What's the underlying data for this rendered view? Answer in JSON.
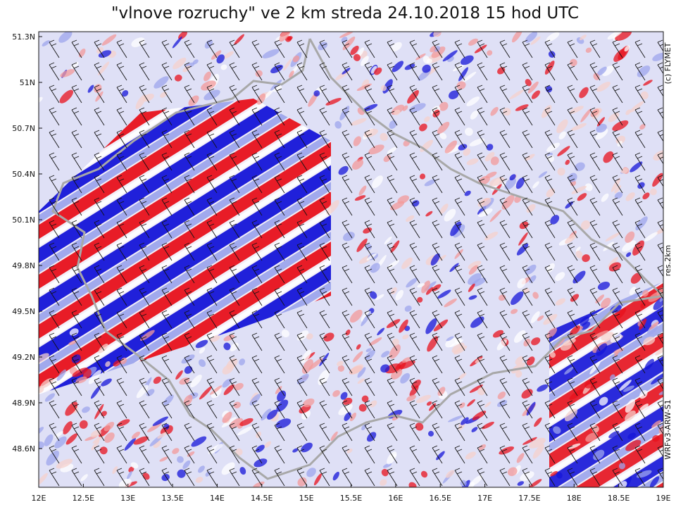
{
  "title": "\"vlnove rozruchy\" ve 2 km streda  24.10.2018 15 hod UTC",
  "lat_labels": [
    "51.3N",
    "51N",
    "50.7N",
    "50.4N",
    "50.1N",
    "49.8N",
    "49.5N",
    "49.2N",
    "48.9N",
    "48.6N"
  ],
  "lon_labels": [
    "12E",
    "12.5E",
    "13E",
    "13.5E",
    "14E",
    "14.5E",
    "15E",
    "15.5E",
    "16E",
    "16.5E",
    "17E",
    "17.5E",
    "18E",
    "18.5E",
    "19E"
  ],
  "side_labels": {
    "copyright": "(c) FLYMET",
    "resolution": "res.2km",
    "model": "WRFv3-ARW-S1"
  }
}
